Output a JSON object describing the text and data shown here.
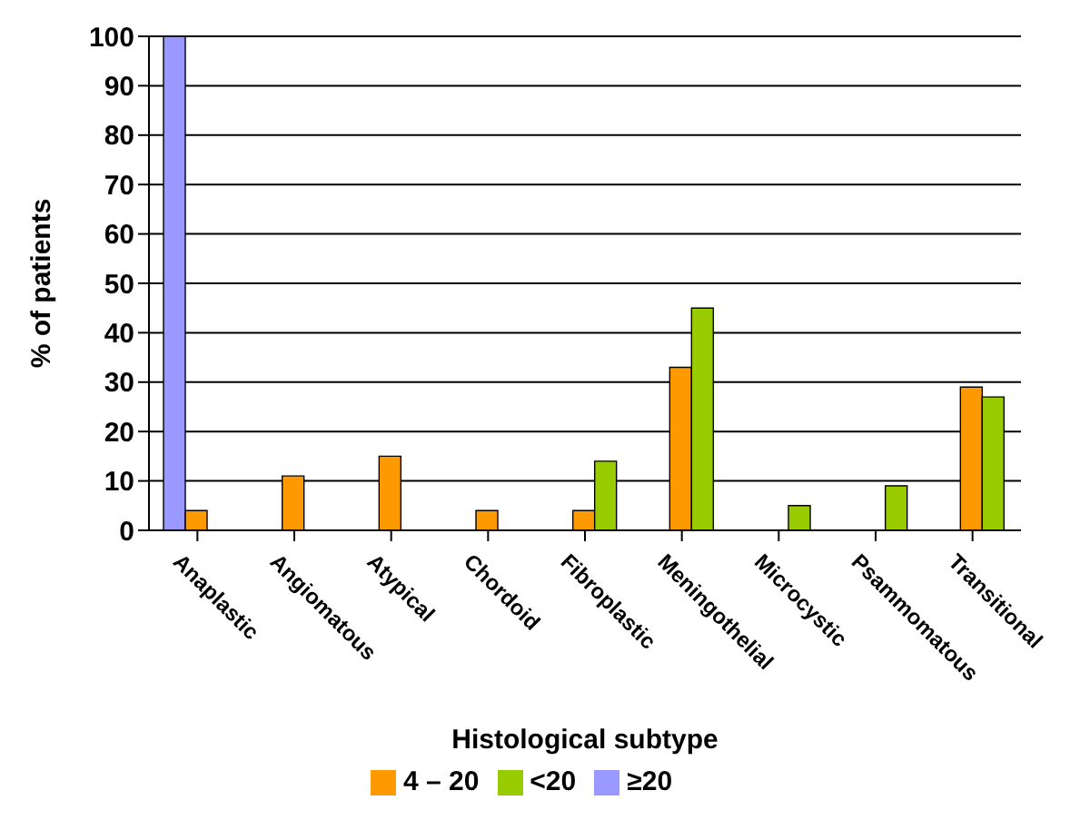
{
  "chart_data": {
    "type": "bar",
    "xlabel": "Histological  subtype",
    "ylabel": "% of patients",
    "categories": [
      "Anaplastic",
      "Angiomatous",
      "Atypical",
      "Chordoid",
      "Fibroplastic",
      "Meningothelial",
      "Microcystic",
      "Psammomatous",
      "Transitional"
    ],
    "series": [
      {
        "name": "≥20",
        "color": "#9999ff",
        "values": [
          100,
          0,
          0,
          0,
          0,
          0,
          0,
          0,
          0
        ]
      },
      {
        "name": "4 – 20",
        "color": "#ff9900",
        "values": [
          4,
          11,
          15,
          4,
          4,
          33,
          0,
          0,
          29
        ]
      },
      {
        "name": "<20",
        "color": "#99cc00",
        "values": [
          0,
          0,
          0,
          0,
          14,
          45,
          5,
          9,
          27
        ]
      }
    ],
    "ylim": [
      0,
      100
    ],
    "yticks": [
      0,
      10,
      20,
      30,
      40,
      50,
      60,
      70,
      80,
      90,
      100
    ],
    "grid": "y",
    "legend": "bottom"
  }
}
